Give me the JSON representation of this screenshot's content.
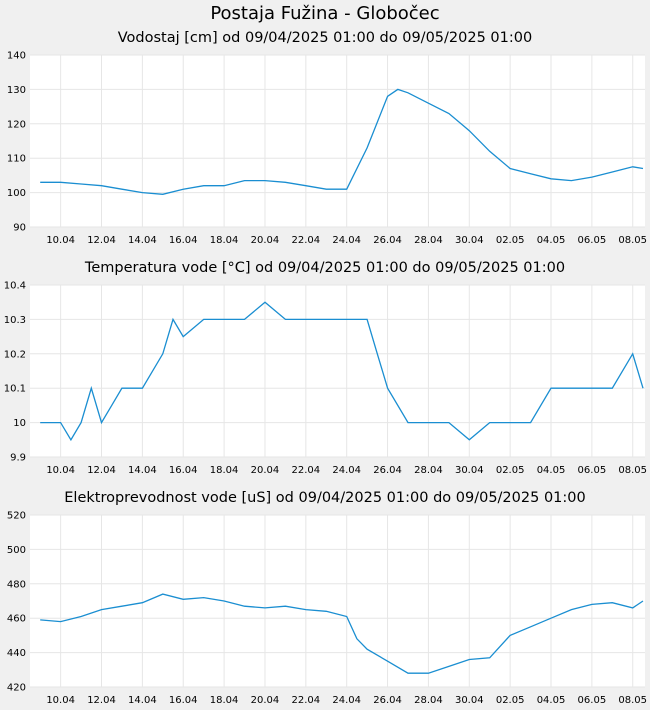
{
  "page_title": "Postaja Fužina - Globočec",
  "series_color": "#1a8ed1",
  "x_ticks": [
    "10.04",
    "12.04",
    "14.04",
    "16.04",
    "18.04",
    "20.04",
    "22.04",
    "24.04",
    "26.04",
    "28.04",
    "30.04",
    "02.05",
    "04.05",
    "06.05",
    "08.05"
  ],
  "chart_data": [
    {
      "type": "line",
      "title": "Vodostaj [cm] od 09/04/2025 01:00 do 09/05/2025 01:00",
      "x_range_days": [
        -0.5,
        29.6
      ],
      "ylim": [
        90,
        140
      ],
      "yticks": [
        "90",
        "100",
        "110",
        "120",
        "130",
        "140"
      ],
      "x": [
        0,
        1,
        2,
        3,
        4,
        5,
        6,
        7,
        8,
        9,
        10,
        11,
        12,
        13,
        14,
        15,
        16,
        17,
        17.5,
        18,
        19,
        20,
        21,
        22,
        23,
        24,
        25,
        26,
        27,
        28,
        29,
        29.5
      ],
      "values": [
        103,
        103,
        102.5,
        102,
        101,
        100,
        99.5,
        101,
        102,
        102,
        103.5,
        103.5,
        103,
        102,
        101,
        101,
        113,
        128,
        130,
        129,
        126,
        123,
        118,
        112,
        107,
        105.5,
        104,
        103.5,
        104.5,
        106,
        107.5,
        107
      ]
    },
    {
      "type": "line",
      "title": "Temperatura vode [°C] od 09/04/2025 01:00 do 09/05/2025 01:00",
      "x_range_days": [
        -0.5,
        29.6
      ],
      "ylim": [
        9.9,
        10.4
      ],
      "yticks": [
        "9.9",
        "10",
        "10.1",
        "10.2",
        "10.3",
        "10.4"
      ],
      "x": [
        0,
        1,
        1.5,
        2,
        2.5,
        3,
        3.5,
        4,
        5,
        6,
        6.5,
        7,
        8,
        9,
        10,
        11,
        12,
        13,
        14,
        15,
        16,
        16.5,
        17,
        18,
        19,
        20,
        21,
        22,
        22.5,
        23,
        24,
        25,
        26,
        27,
        28,
        29,
        29.5
      ],
      "values": [
        10,
        10,
        9.95,
        10,
        10.1,
        10,
        10.05,
        10.1,
        10.1,
        10.2,
        10.3,
        10.25,
        10.3,
        10.3,
        10.3,
        10.35,
        10.3,
        10.3,
        10.3,
        10.3,
        10.3,
        10.2,
        10.1,
        10,
        10,
        10,
        9.95,
        10,
        10,
        10,
        10,
        10.1,
        10.1,
        10.1,
        10.1,
        10.2,
        10.1
      ]
    },
    {
      "type": "line",
      "title": "Elektroprevodnost vode [uS] od 09/04/2025 01:00 do 09/05/2025 01:00",
      "x_range_days": [
        -0.5,
        29.6
      ],
      "ylim": [
        420,
        520
      ],
      "yticks": [
        "420",
        "440",
        "460",
        "480",
        "500",
        "520"
      ],
      "x": [
        0,
        1,
        2,
        3,
        4,
        5,
        6,
        7,
        8,
        9,
        10,
        11,
        12,
        13,
        14,
        15,
        15.5,
        16,
        17,
        18,
        19,
        20,
        21,
        22,
        23,
        24,
        25,
        26,
        27,
        28,
        29,
        29.5
      ],
      "values": [
        459,
        458,
        461,
        465,
        467,
        469,
        474,
        471,
        472,
        470,
        467,
        466,
        467,
        465,
        464,
        461,
        448,
        442,
        435,
        428,
        428,
        432,
        436,
        437,
        450,
        455,
        460,
        465,
        468,
        469,
        466,
        470
      ]
    }
  ]
}
